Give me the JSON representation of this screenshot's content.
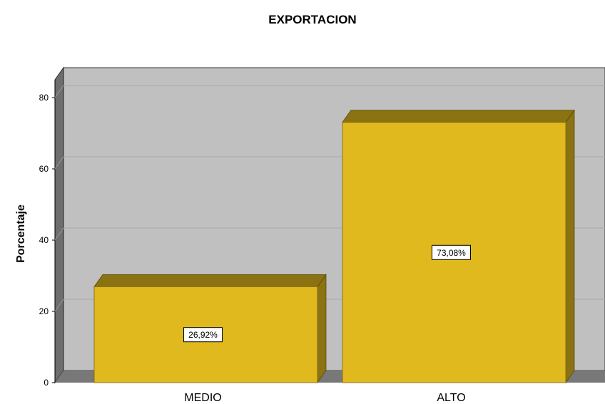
{
  "chart_data": {
    "type": "bar",
    "title": "EXPORTACION",
    "xlabel": "",
    "ylabel": "Porcentaje",
    "categories": [
      "MEDIO",
      "ALTO"
    ],
    "values": [
      26.92,
      73.08
    ],
    "data_labels": [
      "26,92%",
      "73,08%"
    ],
    "yticks": [
      "0",
      "20",
      "40",
      "60",
      "80"
    ],
    "ylim": [
      0,
      85
    ],
    "grid": true,
    "style": "3d",
    "colors": {
      "bar_front": "#e0b91f",
      "bar_top": "#8b7212",
      "bar_side": "#8b7212",
      "plot_bg": "#c0c0c0",
      "wall_side": "#6e6e6e",
      "floor": "#787878"
    }
  }
}
